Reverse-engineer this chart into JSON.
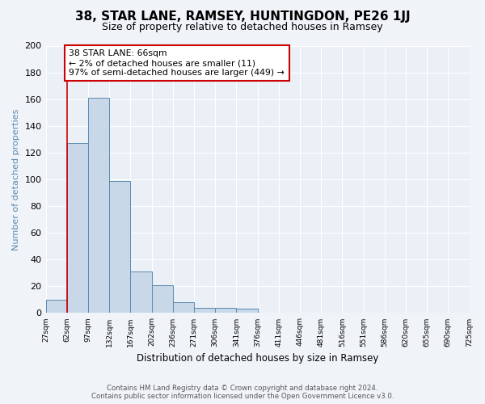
{
  "title": "38, STAR LANE, RAMSEY, HUNTINGDON, PE26 1JJ",
  "subtitle": "Size of property relative to detached houses in Ramsey",
  "xlabel": "Distribution of detached houses by size in Ramsey",
  "ylabel": "Number of detached properties",
  "bar_values": [
    10,
    127,
    161,
    99,
    31,
    21,
    8,
    4,
    4,
    3,
    0,
    0,
    0,
    0,
    0,
    0,
    0,
    0,
    0,
    0
  ],
  "bin_labels": [
    "27sqm",
    "62sqm",
    "97sqm",
    "132sqm",
    "167sqm",
    "202sqm",
    "236sqm",
    "271sqm",
    "306sqm",
    "341sqm",
    "376sqm",
    "411sqm",
    "446sqm",
    "481sqm",
    "516sqm",
    "551sqm",
    "586sqm",
    "620sqm",
    "655sqm",
    "690sqm",
    "725sqm"
  ],
  "bar_color": "#c8d8e8",
  "bar_edge_color": "#5a8ab0",
  "red_line_x": 1,
  "annotation_title": "38 STAR LANE: 66sqm",
  "annotation_line1": "← 2% of detached houses are smaller (11)",
  "annotation_line2": "97% of semi-detached houses are larger (449) →",
  "annotation_box_color": "#ffffff",
  "annotation_box_edge": "#cc0000",
  "ylim": [
    0,
    200
  ],
  "yticks": [
    0,
    20,
    40,
    60,
    80,
    100,
    120,
    140,
    160,
    180,
    200
  ],
  "footer_line1": "Contains HM Land Registry data © Crown copyright and database right 2024.",
  "footer_line2": "Contains public sector information licensed under the Open Government Licence v3.0.",
  "bg_color": "#f0f4f8",
  "plot_bg_color": "#eaf0f6",
  "title_fontsize": 11,
  "subtitle_fontsize": 9,
  "ylabel_color": "#5a8ab0",
  "n_total_bins": 20
}
